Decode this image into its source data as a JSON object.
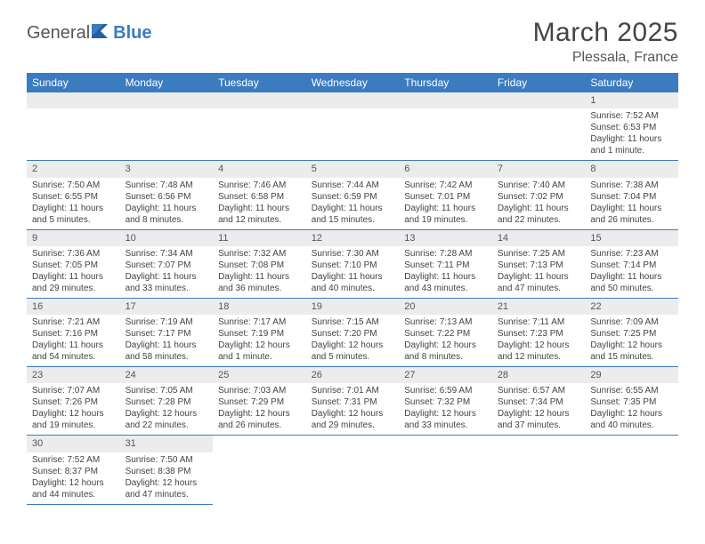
{
  "logo": {
    "part1": "General",
    "part2": "Blue"
  },
  "title": "March 2025",
  "location": "Plessala, France",
  "colors": {
    "header_bg": "#3b7bbf",
    "header_text": "#ffffff",
    "daynum_bg": "#ececec",
    "border": "#3b7bbf",
    "text": "#444444"
  },
  "weekdays": [
    "Sunday",
    "Monday",
    "Tuesday",
    "Wednesday",
    "Thursday",
    "Friday",
    "Saturday"
  ],
  "weeks": [
    [
      null,
      null,
      null,
      null,
      null,
      null,
      {
        "n": "1",
        "sr": "Sunrise: 7:52 AM",
        "ss": "Sunset: 6:53 PM",
        "dl": "Daylight: 11 hours and 1 minute."
      }
    ],
    [
      {
        "n": "2",
        "sr": "Sunrise: 7:50 AM",
        "ss": "Sunset: 6:55 PM",
        "dl": "Daylight: 11 hours and 5 minutes."
      },
      {
        "n": "3",
        "sr": "Sunrise: 7:48 AM",
        "ss": "Sunset: 6:56 PM",
        "dl": "Daylight: 11 hours and 8 minutes."
      },
      {
        "n": "4",
        "sr": "Sunrise: 7:46 AM",
        "ss": "Sunset: 6:58 PM",
        "dl": "Daylight: 11 hours and 12 minutes."
      },
      {
        "n": "5",
        "sr": "Sunrise: 7:44 AM",
        "ss": "Sunset: 6:59 PM",
        "dl": "Daylight: 11 hours and 15 minutes."
      },
      {
        "n": "6",
        "sr": "Sunrise: 7:42 AM",
        "ss": "Sunset: 7:01 PM",
        "dl": "Daylight: 11 hours and 19 minutes."
      },
      {
        "n": "7",
        "sr": "Sunrise: 7:40 AM",
        "ss": "Sunset: 7:02 PM",
        "dl": "Daylight: 11 hours and 22 minutes."
      },
      {
        "n": "8",
        "sr": "Sunrise: 7:38 AM",
        "ss": "Sunset: 7:04 PM",
        "dl": "Daylight: 11 hours and 26 minutes."
      }
    ],
    [
      {
        "n": "9",
        "sr": "Sunrise: 7:36 AM",
        "ss": "Sunset: 7:05 PM",
        "dl": "Daylight: 11 hours and 29 minutes."
      },
      {
        "n": "10",
        "sr": "Sunrise: 7:34 AM",
        "ss": "Sunset: 7:07 PM",
        "dl": "Daylight: 11 hours and 33 minutes."
      },
      {
        "n": "11",
        "sr": "Sunrise: 7:32 AM",
        "ss": "Sunset: 7:08 PM",
        "dl": "Daylight: 11 hours and 36 minutes."
      },
      {
        "n": "12",
        "sr": "Sunrise: 7:30 AM",
        "ss": "Sunset: 7:10 PM",
        "dl": "Daylight: 11 hours and 40 minutes."
      },
      {
        "n": "13",
        "sr": "Sunrise: 7:28 AM",
        "ss": "Sunset: 7:11 PM",
        "dl": "Daylight: 11 hours and 43 minutes."
      },
      {
        "n": "14",
        "sr": "Sunrise: 7:25 AM",
        "ss": "Sunset: 7:13 PM",
        "dl": "Daylight: 11 hours and 47 minutes."
      },
      {
        "n": "15",
        "sr": "Sunrise: 7:23 AM",
        "ss": "Sunset: 7:14 PM",
        "dl": "Daylight: 11 hours and 50 minutes."
      }
    ],
    [
      {
        "n": "16",
        "sr": "Sunrise: 7:21 AM",
        "ss": "Sunset: 7:16 PM",
        "dl": "Daylight: 11 hours and 54 minutes."
      },
      {
        "n": "17",
        "sr": "Sunrise: 7:19 AM",
        "ss": "Sunset: 7:17 PM",
        "dl": "Daylight: 11 hours and 58 minutes."
      },
      {
        "n": "18",
        "sr": "Sunrise: 7:17 AM",
        "ss": "Sunset: 7:19 PM",
        "dl": "Daylight: 12 hours and 1 minute."
      },
      {
        "n": "19",
        "sr": "Sunrise: 7:15 AM",
        "ss": "Sunset: 7:20 PM",
        "dl": "Daylight: 12 hours and 5 minutes."
      },
      {
        "n": "20",
        "sr": "Sunrise: 7:13 AM",
        "ss": "Sunset: 7:22 PM",
        "dl": "Daylight: 12 hours and 8 minutes."
      },
      {
        "n": "21",
        "sr": "Sunrise: 7:11 AM",
        "ss": "Sunset: 7:23 PM",
        "dl": "Daylight: 12 hours and 12 minutes."
      },
      {
        "n": "22",
        "sr": "Sunrise: 7:09 AM",
        "ss": "Sunset: 7:25 PM",
        "dl": "Daylight: 12 hours and 15 minutes."
      }
    ],
    [
      {
        "n": "23",
        "sr": "Sunrise: 7:07 AM",
        "ss": "Sunset: 7:26 PM",
        "dl": "Daylight: 12 hours and 19 minutes."
      },
      {
        "n": "24",
        "sr": "Sunrise: 7:05 AM",
        "ss": "Sunset: 7:28 PM",
        "dl": "Daylight: 12 hours and 22 minutes."
      },
      {
        "n": "25",
        "sr": "Sunrise: 7:03 AM",
        "ss": "Sunset: 7:29 PM",
        "dl": "Daylight: 12 hours and 26 minutes."
      },
      {
        "n": "26",
        "sr": "Sunrise: 7:01 AM",
        "ss": "Sunset: 7:31 PM",
        "dl": "Daylight: 12 hours and 29 minutes."
      },
      {
        "n": "27",
        "sr": "Sunrise: 6:59 AM",
        "ss": "Sunset: 7:32 PM",
        "dl": "Daylight: 12 hours and 33 minutes."
      },
      {
        "n": "28",
        "sr": "Sunrise: 6:57 AM",
        "ss": "Sunset: 7:34 PM",
        "dl": "Daylight: 12 hours and 37 minutes."
      },
      {
        "n": "29",
        "sr": "Sunrise: 6:55 AM",
        "ss": "Sunset: 7:35 PM",
        "dl": "Daylight: 12 hours and 40 minutes."
      }
    ],
    [
      {
        "n": "30",
        "sr": "Sunrise: 7:52 AM",
        "ss": "Sunset: 8:37 PM",
        "dl": "Daylight: 12 hours and 44 minutes."
      },
      {
        "n": "31",
        "sr": "Sunrise: 7:50 AM",
        "ss": "Sunset: 8:38 PM",
        "dl": "Daylight: 12 hours and 47 minutes."
      },
      null,
      null,
      null,
      null,
      null
    ]
  ]
}
